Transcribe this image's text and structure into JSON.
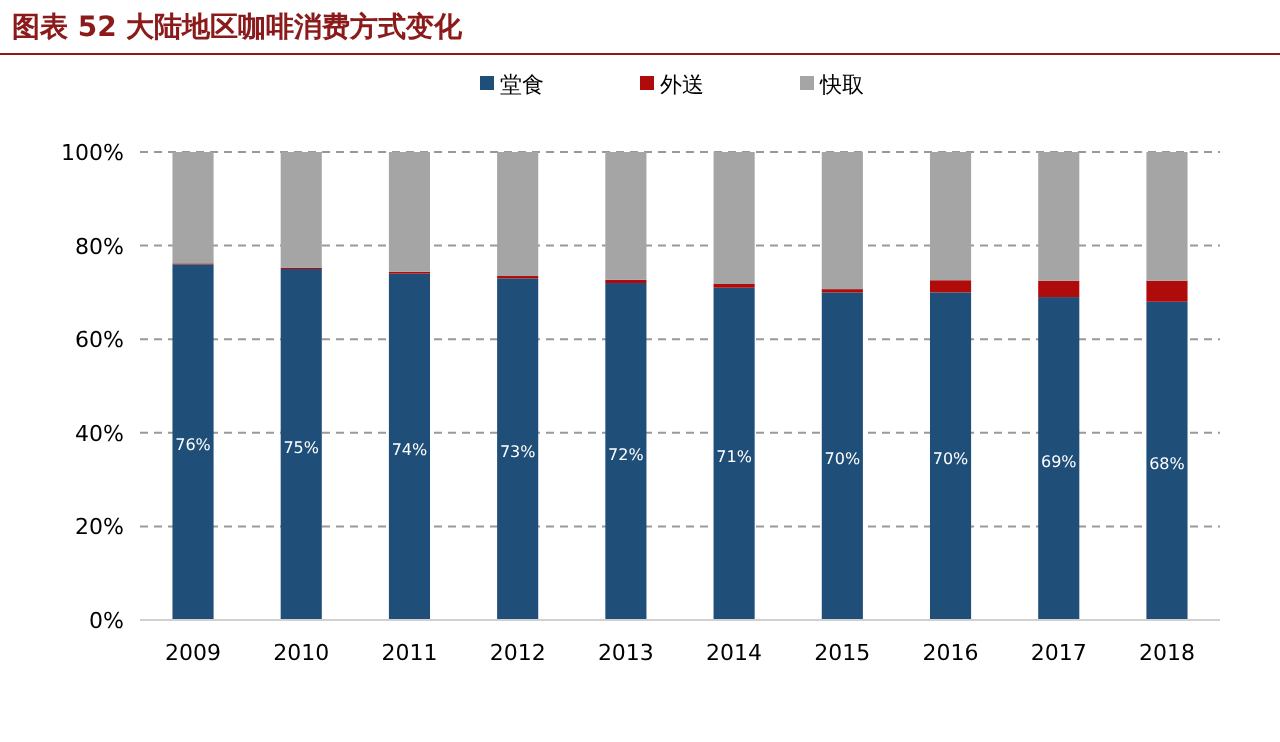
{
  "chart_data": {
    "type": "bar",
    "title": "图表 52    大陆地区咖啡消费方式变化",
    "categories": [
      "2009",
      "2010",
      "2011",
      "2012",
      "2013",
      "2014",
      "2015",
      "2016",
      "2017",
      "2018"
    ],
    "stacked": true,
    "series": [
      {
        "name": "堂食",
        "color": "#1f4e79",
        "values": [
          76,
          75,
          74,
          73,
          72,
          71,
          70,
          70,
          69,
          68
        ],
        "value_labels": [
          "76%",
          "75%",
          "74%",
          "73%",
          "72%",
          "71%",
          "70%",
          "70%",
          "69%",
          "68%"
        ]
      },
      {
        "name": "外送",
        "color": "#b00b0b",
        "values": [
          0.2,
          0.3,
          0.4,
          0.5,
          0.7,
          0.8,
          0.7,
          2.6,
          3.5,
          4.5
        ]
      },
      {
        "name": "快取",
        "color": "#a5a5a5",
        "values": [
          23.8,
          24.7,
          25.6,
          26.5,
          27.3,
          28.2,
          29.3,
          27.4,
          27.5,
          27.5
        ]
      }
    ],
    "ylim": [
      0,
      100
    ],
    "yticks": [
      {
        "value": 0,
        "label": "0%"
      },
      {
        "value": 20,
        "label": "20%"
      },
      {
        "value": 40,
        "label": "40%"
      },
      {
        "value": 60,
        "label": "60%"
      },
      {
        "value": 80,
        "label": "80%"
      },
      {
        "value": 100,
        "label": "100%"
      }
    ],
    "grid": "y",
    "legend": "top"
  }
}
